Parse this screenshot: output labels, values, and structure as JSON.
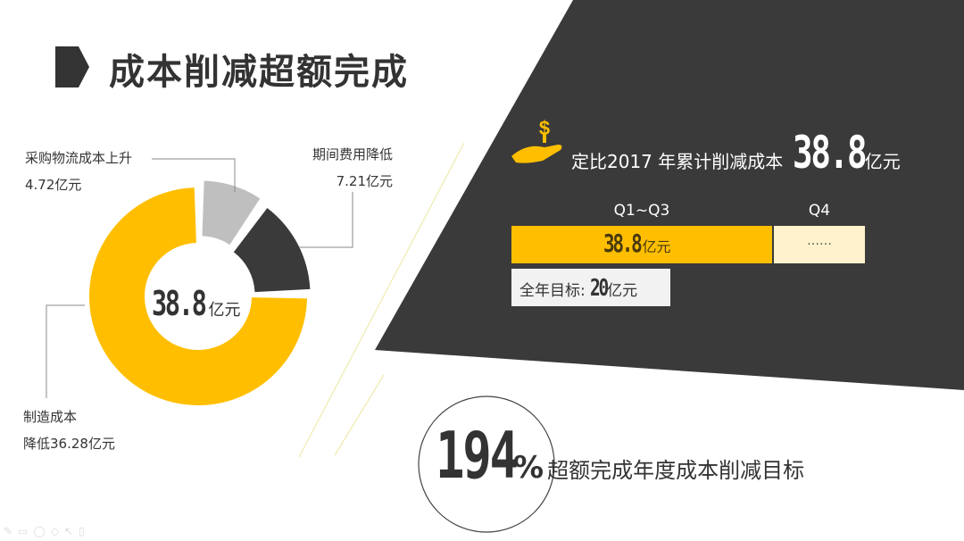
{
  "title": "成本削减超额完成",
  "colors": {
    "accent": "#FFBF00",
    "dark": "#3A3A3A",
    "gray": "#BFBFBF",
    "light": "#FFF2CC"
  },
  "donut": {
    "center_value": "38.8",
    "center_unit": "亿元",
    "labels": [
      {
        "name": "采购物流成本上升",
        "value": "4.72亿元"
      },
      {
        "name": "期间费用降低",
        "value": "7.21亿元"
      },
      {
        "name": "制造成本",
        "value": "降低36.28亿元"
      }
    ]
  },
  "chart_data": {
    "type": "pie",
    "donut": true,
    "categories": [
      "采购物流成本上升",
      "期间费用降低",
      "制造成本降低"
    ],
    "values": [
      4.72,
      7.21,
      36.28
    ],
    "colors": [
      "#BFBFBF",
      "#3A3A3A",
      "#FFBF00"
    ]
  },
  "summary": {
    "icon": "money-hand-icon",
    "text": "定比2017 年累计削减成本",
    "value": "38.8",
    "unit": "亿元"
  },
  "quarters": {
    "q13_label": "Q1~Q3",
    "q4_label": "Q4",
    "q13_value": "38.8",
    "q13_unit": "亿元",
    "q4_value": "……",
    "target_label": "全年目标:",
    "target_value": "20",
    "target_unit": "亿元"
  },
  "completion": {
    "value": "194",
    "unit": "%",
    "text": "超额完成年度成本削减目标"
  }
}
